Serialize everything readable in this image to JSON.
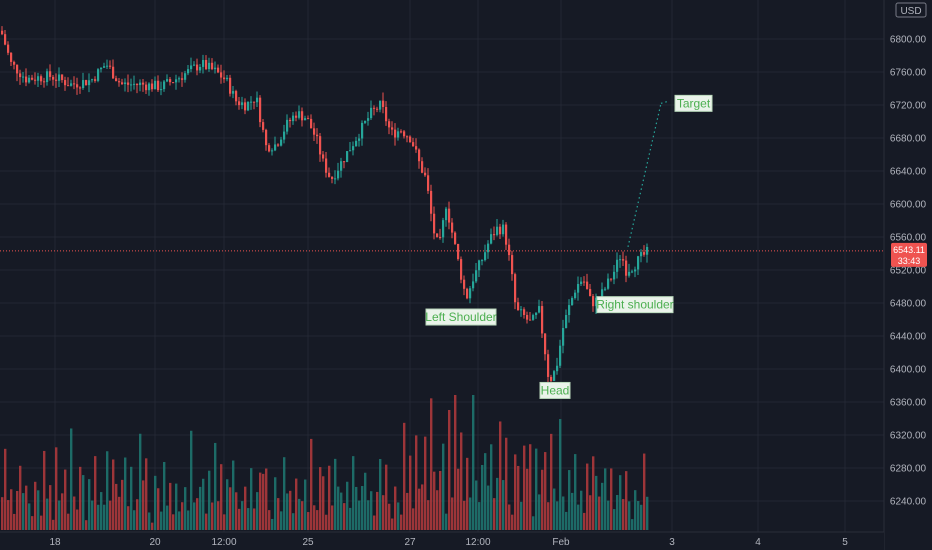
{
  "chart_data": {
    "type": "candlestick",
    "currency": "USD",
    "last_price": "6543.11",
    "countdown": "33:43",
    "ylim": [
      6200,
      6860
    ],
    "y_ticks": [
      "6800.00",
      "6760.00",
      "6720.00",
      "6680.00",
      "6640.00",
      "6600.00",
      "6560.00",
      "6520.00",
      "6480.00",
      "6440.00",
      "6400.00",
      "6360.00",
      "6320.00",
      "6280.00",
      "6240.00"
    ],
    "x_ticks": [
      "18",
      "20",
      "12:00",
      "25",
      "27",
      "12:00",
      "Feb",
      "3",
      "4",
      "5"
    ],
    "annotations": [
      {
        "text": "Left Shoulder",
        "price": 6463
      },
      {
        "text": "Head",
        "price": 6374
      },
      {
        "text": "Right shoulder",
        "price": 6478
      },
      {
        "text": "Target",
        "price": 6722
      }
    ],
    "projection": {
      "from_price": 6548,
      "to_price": 6722
    },
    "colors": {
      "up": "#26a69a",
      "down": "#ef5350",
      "up_volume": "#1f7a73",
      "down_volume": "#b53b3d",
      "background": "#161a25",
      "grid": "#232734",
      "price_line": "#ef5350",
      "projection": "#26a69a",
      "annotation": "#4caf50"
    },
    "price_path": [
      [
        0,
        6810
      ],
      [
        10,
        6770
      ],
      [
        25,
        6752
      ],
      [
        50,
        6755
      ],
      [
        70,
        6745
      ],
      [
        90,
        6750
      ],
      [
        105,
        6770
      ],
      [
        120,
        6745
      ],
      [
        140,
        6745
      ],
      [
        160,
        6742
      ],
      [
        180,
        6755
      ],
      [
        200,
        6770
      ],
      [
        215,
        6760
      ],
      [
        225,
        6750
      ],
      [
        235,
        6725
      ],
      [
        245,
        6720
      ],
      [
        255,
        6730
      ],
      [
        265,
        6670
      ],
      [
        275,
        6672
      ],
      [
        285,
        6695
      ],
      [
        295,
        6710
      ],
      [
        305,
        6705
      ],
      [
        315,
        6680
      ],
      [
        322,
        6650
      ],
      [
        330,
        6630
      ],
      [
        340,
        6650
      ],
      [
        350,
        6670
      ],
      [
        360,
        6690
      ],
      [
        370,
        6710
      ],
      [
        380,
        6720
      ],
      [
        390,
        6685
      ],
      [
        400,
        6690
      ],
      [
        410,
        6680
      ],
      [
        418,
        6650
      ],
      [
        425,
        6630
      ],
      [
        432,
        6570
      ],
      [
        438,
        6545
      ],
      [
        445,
        6600
      ],
      [
        452,
        6560
      ],
      [
        458,
        6525
      ],
      [
        465,
        6485
      ],
      [
        472,
        6510
      ],
      [
        480,
        6530
      ],
      [
        488,
        6555
      ],
      [
        495,
        6570
      ],
      [
        503,
        6570
      ],
      [
        510,
        6520
      ],
      [
        515,
        6470
      ],
      [
        522,
        6465
      ],
      [
        530,
        6455
      ],
      [
        538,
        6470
      ],
      [
        543,
        6430
      ],
      [
        548,
        6385
      ],
      [
        555,
        6400
      ],
      [
        562,
        6450
      ],
      [
        568,
        6475
      ],
      [
        575,
        6500
      ],
      [
        582,
        6510
      ],
      [
        590,
        6480
      ],
      [
        598,
        6485
      ],
      [
        605,
        6500
      ],
      [
        612,
        6515
      ],
      [
        620,
        6540
      ],
      [
        625,
        6520
      ],
      [
        632,
        6525
      ],
      [
        640,
        6535
      ],
      [
        648,
        6543
      ]
    ],
    "volume_pattern": [
      44,
      72,
      28,
      55,
      18,
      33,
      90,
      48,
      60,
      25,
      12,
      65,
      40,
      22,
      80,
      35,
      52,
      15,
      70,
      30,
      45,
      58,
      20,
      85,
      38,
      27,
      62,
      50,
      16,
      74,
      33,
      95,
      42,
      57,
      24,
      68,
      36,
      110,
      48,
      29
    ]
  }
}
